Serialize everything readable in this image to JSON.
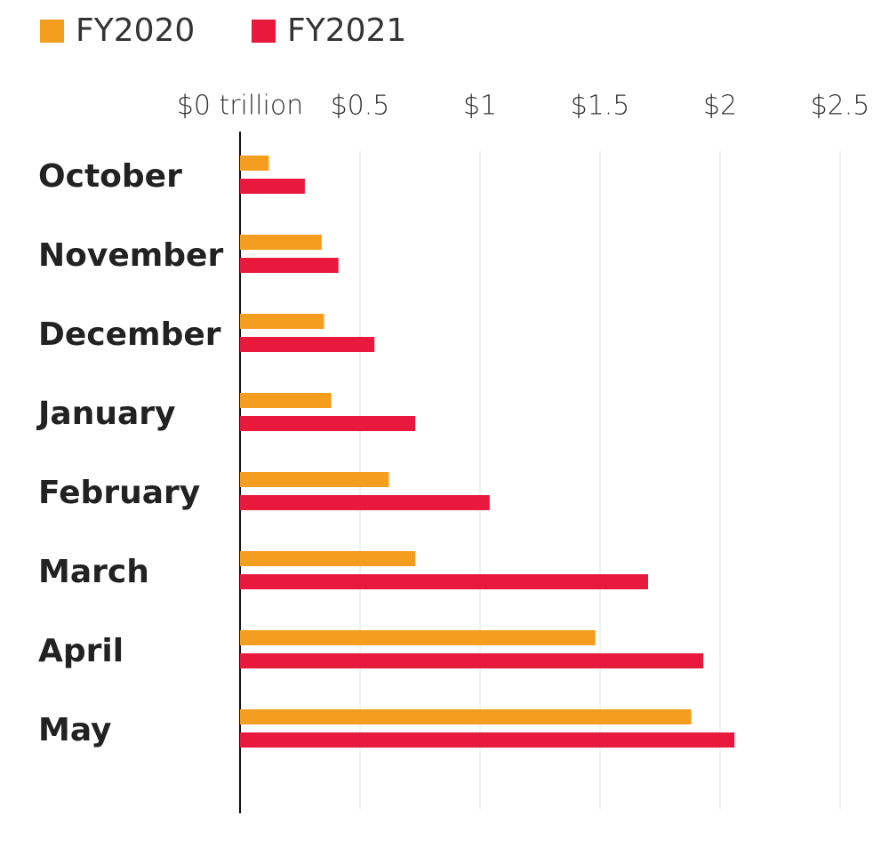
{
  "chart_data": {
    "type": "bar",
    "orientation": "horizontal",
    "categories": [
      "October",
      "November",
      "December",
      "January",
      "February",
      "March",
      "April",
      "May"
    ],
    "series": [
      {
        "name": "FY2020",
        "color": "#f59d1f",
        "values": [
          0.12,
          0.34,
          0.35,
          0.38,
          0.62,
          0.73,
          1.48,
          1.88
        ]
      },
      {
        "name": "FY2021",
        "color": "#e8193c",
        "values": [
          0.27,
          0.41,
          0.56,
          0.73,
          1.04,
          1.7,
          1.93,
          2.06
        ]
      }
    ],
    "xlim": [
      0,
      2.5
    ],
    "xticks": [
      {
        "value": 0,
        "label": "$0 trillion"
      },
      {
        "value": 0.5,
        "label": "$0.5"
      },
      {
        "value": 1,
        "label": "$1"
      },
      {
        "value": 1.5,
        "label": "$1.5"
      },
      {
        "value": 2,
        "label": "$2"
      },
      {
        "value": 2.5,
        "label": "$2.5"
      }
    ],
    "grid": true
  }
}
